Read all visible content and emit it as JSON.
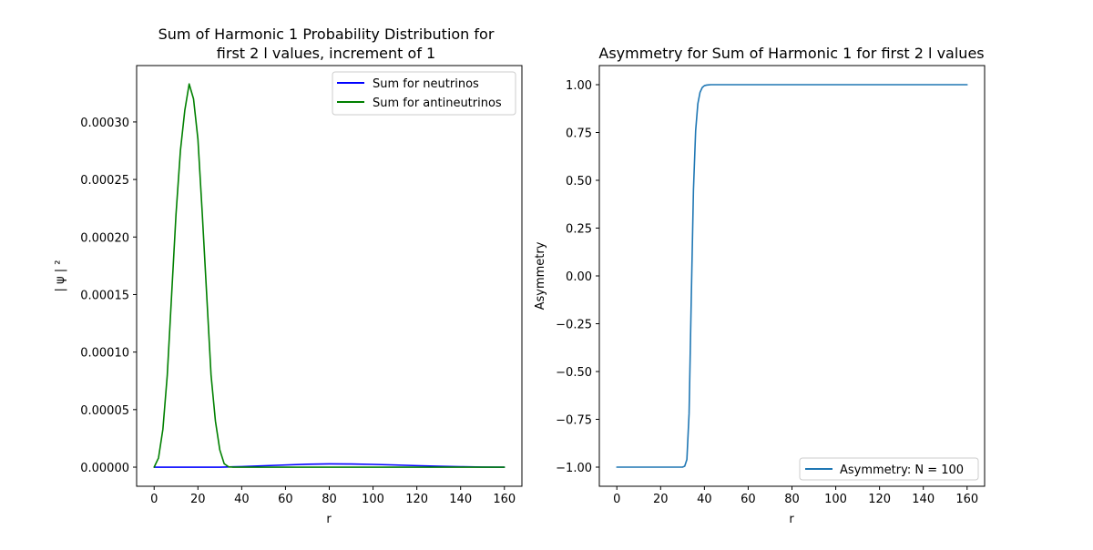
{
  "chart_data": [
    {
      "type": "line",
      "title_line1": "Sum of Harmonic 1 Probability Distribution for",
      "title_line2": "first 2 l values, increment of 1",
      "xlabel": "r",
      "ylabel": "| ψ | ²",
      "xlim": [
        -8,
        168
      ],
      "ylim": [
        -1.66e-05,
        0.000349
      ],
      "xticks": [
        0,
        20,
        40,
        60,
        80,
        100,
        120,
        140,
        160
      ],
      "xtick_labels": [
        "0",
        "20",
        "40",
        "60",
        "80",
        "100",
        "120",
        "140",
        "160"
      ],
      "yticks": [
        0,
        5e-05,
        0.0001,
        0.00015,
        0.0002,
        0.00025,
        0.0003
      ],
      "ytick_labels": [
        "0.00000",
        "0.00005",
        "0.00010",
        "0.00015",
        "0.00020",
        "0.00025",
        "0.00030"
      ],
      "legend_position": "upper right",
      "series": [
        {
          "name": "Sum for neutrinos",
          "color": "#0000ff",
          "x": [
            0,
            10,
            20,
            30,
            40,
            50,
            60,
            70,
            80,
            90,
            100,
            110,
            120,
            130,
            140,
            150,
            160
          ],
          "y": [
            0,
            0,
            0,
            0,
            5e-07,
            1.2e-06,
            1.9e-06,
            2.5e-06,
            2.8e-06,
            2.7e-06,
            2.4e-06,
            1.9e-06,
            1.3e-06,
            8e-07,
            4e-07,
            1e-07,
            0
          ]
        },
        {
          "name": "Sum for antineutrinos",
          "color": "#008000",
          "x": [
            0,
            2,
            4,
            6,
            8,
            10,
            12,
            14,
            16,
            18,
            20,
            22,
            24,
            26,
            28,
            30,
            32,
            34,
            36,
            40,
            60,
            80,
            100,
            120,
            140,
            160
          ],
          "y": [
            0,
            8e-06,
            3.3e-05,
            8e-05,
            0.00015,
            0.00022,
            0.000275,
            0.00031,
            0.000333,
            0.00032,
            0.000285,
            0.00022,
            0.00015,
            8e-05,
            4e-05,
            1.5e-05,
            3e-06,
            3e-07,
            0,
            0,
            0,
            0,
            0,
            0,
            0,
            0
          ]
        }
      ]
    },
    {
      "type": "line",
      "title": "Asymmetry for Sum of Harmonic 1 for first 2 l values",
      "xlabel": "r",
      "ylabel": "Asymmetry",
      "xlim": [
        -8,
        168
      ],
      "ylim": [
        -1.1,
        1.1
      ],
      "xticks": [
        0,
        20,
        40,
        60,
        80,
        100,
        120,
        140,
        160
      ],
      "xtick_labels": [
        "0",
        "20",
        "40",
        "60",
        "80",
        "100",
        "120",
        "140",
        "160"
      ],
      "yticks": [
        -1,
        -0.75,
        -0.5,
        -0.25,
        0,
        0.25,
        0.5,
        0.75,
        1
      ],
      "ytick_labels": [
        "−1.00",
        "−0.75",
        "−0.50",
        "−0.25",
        "0.00",
        "0.25",
        "0.50",
        "0.75",
        "1.00"
      ],
      "legend_position": "lower right",
      "series": [
        {
          "name": "Asymmetry: N = 100",
          "color": "#1f77b4",
          "x": [
            0,
            10,
            20,
            28,
            30,
            31,
            32,
            33,
            34,
            35,
            36,
            37,
            38,
            39,
            40,
            41,
            42,
            43,
            44,
            46,
            50,
            60,
            80,
            100,
            120,
            140,
            160
          ],
          "y": [
            -1,
            -1,
            -1,
            -1,
            -1,
            -0.995,
            -0.96,
            -0.72,
            -0.12,
            0.45,
            0.76,
            0.9,
            0.96,
            0.985,
            0.995,
            0.998,
            0.999,
            1,
            1,
            1,
            1,
            1,
            1,
            1,
            1,
            1,
            1
          ]
        }
      ]
    }
  ]
}
